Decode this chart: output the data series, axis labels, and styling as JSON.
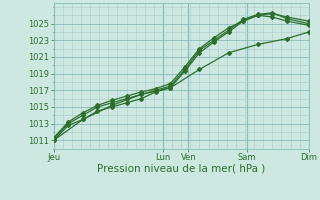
{
  "title": "",
  "xlabel": "Pression niveau de la mer( hPa )",
  "background_color": "#cce8e0",
  "grid_color_minor": "#aacccc",
  "grid_color_major": "#88bbbb",
  "line_color": "#2d6e2d",
  "ylim": [
    1010.0,
    1027.5
  ],
  "yticks": [
    1011,
    1013,
    1015,
    1017,
    1019,
    1021,
    1023,
    1025
  ],
  "xlim": [
    0,
    7.0
  ],
  "x_day_labels": [
    "Jeu",
    "Lun",
    "Ven",
    "Sam",
    "Dim"
  ],
  "x_day_positions": [
    0.0,
    3.0,
    3.7,
    5.3,
    7.0
  ],
  "x_major_vlines": [
    0.0,
    3.0,
    3.7,
    5.3,
    7.0
  ],
  "series": [
    {
      "x": [
        0.0,
        0.4,
        0.8,
        1.2,
        1.6,
        2.0,
        2.4,
        2.8,
        3.2,
        3.6,
        4.0,
        4.4,
        4.8,
        5.2,
        5.6,
        6.0,
        6.4,
        7.0
      ],
      "y": [
        1011.0,
        1012.8,
        1013.5,
        1014.5,
        1015.0,
        1015.5,
        1016.0,
        1016.8,
        1017.3,
        1019.3,
        1021.5,
        1022.8,
        1024.0,
        1025.3,
        1026.0,
        1026.2,
        1025.8,
        1025.3
      ]
    },
    {
      "x": [
        0.0,
        0.4,
        0.8,
        1.2,
        1.6,
        2.0,
        2.4,
        2.8,
        3.2,
        3.6,
        4.0,
        4.4,
        4.8,
        5.2,
        5.6,
        6.0,
        6.4,
        7.0
      ],
      "y": [
        1011.2,
        1013.0,
        1014.0,
        1015.0,
        1015.5,
        1016.0,
        1016.5,
        1017.0,
        1017.5,
        1019.5,
        1021.8,
        1023.0,
        1024.2,
        1025.5,
        1026.1,
        1026.3,
        1025.6,
        1025.0
      ]
    },
    {
      "x": [
        0.0,
        0.4,
        0.8,
        1.2,
        1.6,
        2.0,
        2.4,
        2.8,
        3.2,
        3.6,
        4.0,
        4.4,
        4.8,
        5.2,
        5.6,
        6.0,
        6.4,
        7.0
      ],
      "y": [
        1011.3,
        1013.2,
        1014.3,
        1015.2,
        1015.8,
        1016.3,
        1016.8,
        1017.2,
        1017.8,
        1019.8,
        1022.0,
        1023.3,
        1024.5,
        1025.3,
        1026.0,
        1025.8,
        1025.3,
        1024.8
      ]
    },
    {
      "x": [
        0.0,
        0.8,
        1.6,
        2.4,
        3.2,
        4.0,
        4.8,
        5.6,
        6.4,
        7.0
      ],
      "y": [
        1011.0,
        1013.5,
        1015.2,
        1016.5,
        1017.3,
        1019.5,
        1021.5,
        1022.5,
        1023.2,
        1024.0
      ]
    }
  ],
  "marker_style": "D",
  "marker_size": 2.0,
  "line_width": 0.9,
  "tick_fontsize": 6,
  "xlabel_fontsize": 7.5
}
